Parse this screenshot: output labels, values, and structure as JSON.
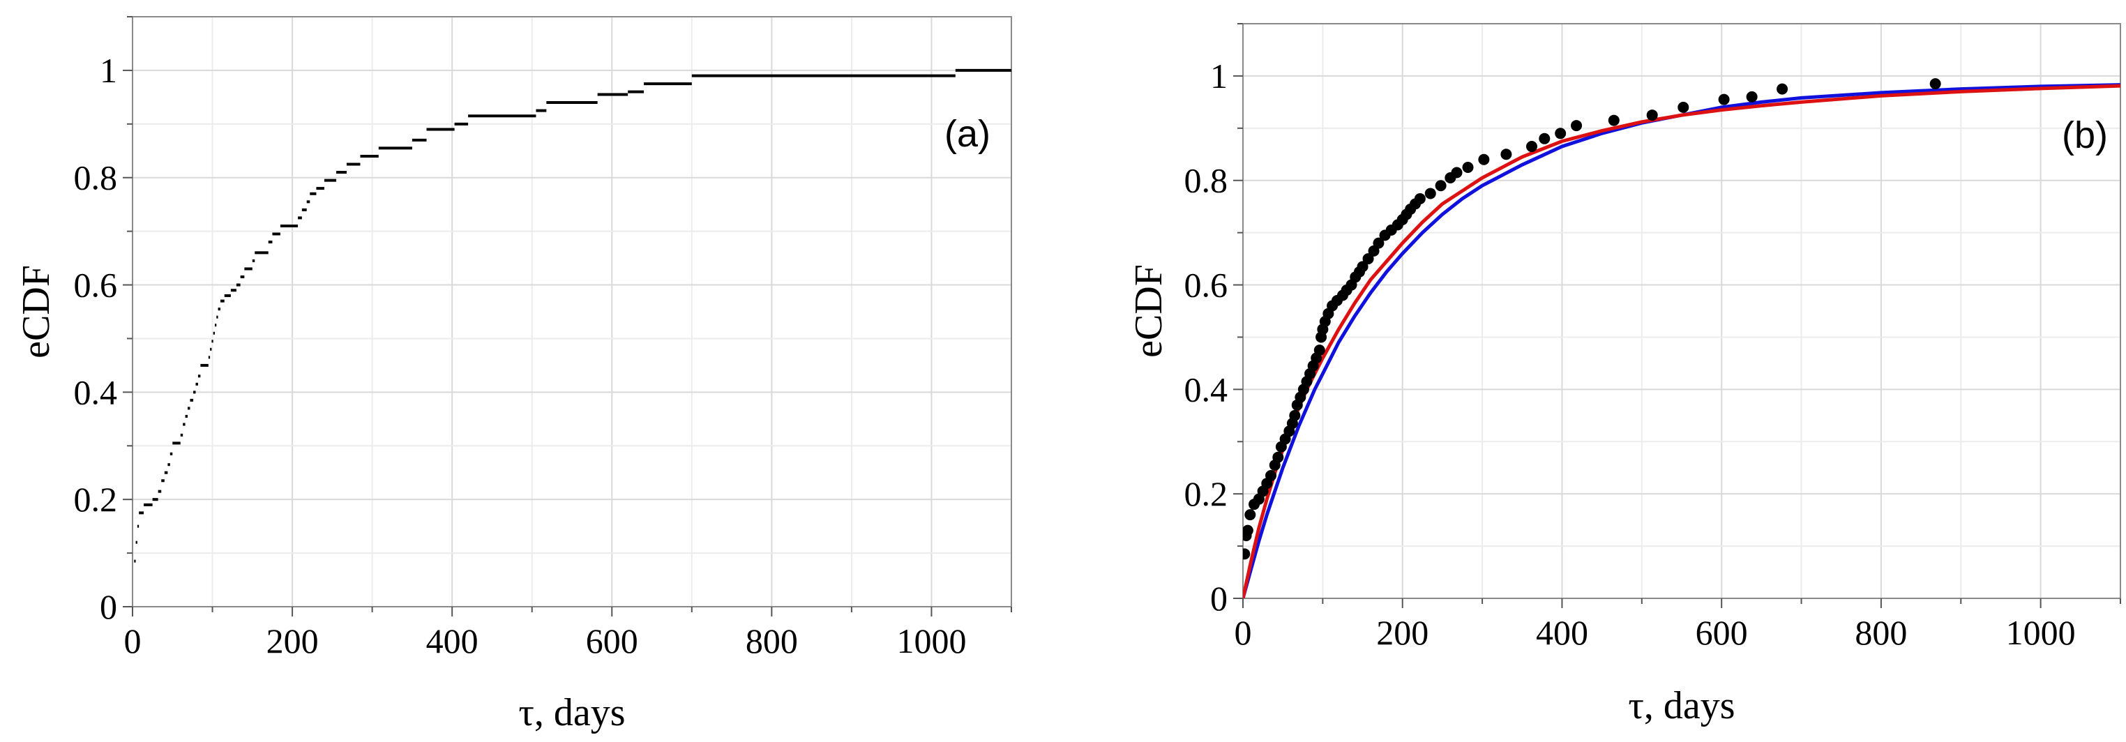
{
  "chart_data": [
    {
      "type": "step",
      "panel_label": "(a)",
      "xlabel": "τ, days",
      "ylabel": "eCDF",
      "xlim": [
        0,
        1100
      ],
      "ylim": [
        0,
        1.1
      ],
      "xticks": [
        0,
        200,
        400,
        600,
        800,
        1000
      ],
      "xtick_labels": [
        "0",
        "200",
        "400",
        "600",
        "800",
        "1000"
      ],
      "yticks": [
        0,
        0.2,
        0.4,
        0.6,
        0.8,
        1
      ],
      "ytick_labels": [
        "0",
        "0.2",
        "0.4",
        "0.6",
        "0.8",
        "1"
      ],
      "grid": true,
      "series": [
        {
          "color": "#000000",
          "steps": [
            [
              2,
              0.085
            ],
            [
              4,
              0.12
            ],
            [
              6,
              0.15
            ],
            [
              8,
              0.175
            ],
            [
              14,
              0.19
            ],
            [
              25,
              0.2
            ],
            [
              32,
              0.215
            ],
            [
              36,
              0.235
            ],
            [
              40,
              0.25
            ],
            [
              44,
              0.265
            ],
            [
              47,
              0.285
            ],
            [
              50,
              0.305
            ],
            [
              60,
              0.32
            ],
            [
              63,
              0.34
            ],
            [
              66,
              0.355
            ],
            [
              69,
              0.37
            ],
            [
              72,
              0.385
            ],
            [
              76,
              0.4
            ],
            [
              79,
              0.415
            ],
            [
              82,
              0.43
            ],
            [
              85,
              0.45
            ],
            [
              95,
              0.465
            ],
            [
              97,
              0.48
            ],
            [
              99,
              0.495
            ],
            [
              101,
              0.51
            ],
            [
              103,
              0.525
            ],
            [
              105,
              0.54
            ],
            [
              107,
              0.555
            ],
            [
              110,
              0.57
            ],
            [
              115,
              0.58
            ],
            [
              123,
              0.59
            ],
            [
              130,
              0.6
            ],
            [
              135,
              0.615
            ],
            [
              140,
              0.63
            ],
            [
              150,
              0.645
            ],
            [
              153,
              0.66
            ],
            [
              170,
              0.68
            ],
            [
              175,
              0.695
            ],
            [
              185,
              0.71
            ],
            [
              207,
              0.725
            ],
            [
              212,
              0.74
            ],
            [
              218,
              0.755
            ],
            [
              222,
              0.77
            ],
            [
              230,
              0.78
            ],
            [
              240,
              0.795
            ],
            [
              255,
              0.81
            ],
            [
              268,
              0.825
            ],
            [
              285,
              0.84
            ],
            [
              308,
              0.855
            ],
            [
              350,
              0.87
            ],
            [
              368,
              0.89
            ],
            [
              403,
              0.9
            ],
            [
              420,
              0.915
            ],
            [
              505,
              0.925
            ],
            [
              518,
              0.94
            ],
            [
              582,
              0.955
            ],
            [
              620,
              0.96
            ],
            [
              640,
              0.975
            ],
            [
              700,
              0.99
            ],
            [
              1030,
              1.0
            ],
            [
              1100,
              1.0
            ]
          ]
        }
      ]
    },
    {
      "type": "scatter+line",
      "panel_label": "(b)",
      "xlabel": "τ, days",
      "ylabel": "eCDF",
      "xlim": [
        0,
        1100
      ],
      "ylim": [
        0,
        1.1
      ],
      "xticks": [
        0,
        200,
        400,
        600,
        800,
        1000
      ],
      "xtick_labels": [
        "0",
        "200",
        "400",
        "600",
        "800",
        "1000"
      ],
      "yticks": [
        0,
        0.2,
        0.4,
        0.6,
        0.8,
        1
      ],
      "ytick_labels": [
        "0",
        "0.2",
        "0.4",
        "0.6",
        "0.8",
        "1"
      ],
      "grid": true,
      "points": {
        "color": "#000000",
        "x": [
          2,
          4,
          6,
          9,
          14,
          20,
          25,
          30,
          35,
          40,
          44,
          48,
          53,
          58,
          62,
          65,
          68,
          72,
          76,
          80,
          84,
          88,
          92,
          96,
          98,
          100,
          103,
          107,
          112,
          118,
          125,
          130,
          136,
          141,
          146,
          150,
          157,
          164,
          170,
          178,
          186,
          194,
          200,
          205,
          210,
          216,
          222,
          235,
          248,
          260,
          268,
          282,
          302,
          330,
          362,
          378,
          398,
          418,
          465,
          513,
          552,
          603,
          638,
          676,
          868
        ],
        "y": [
          0.085,
          0.12,
          0.13,
          0.16,
          0.18,
          0.19,
          0.205,
          0.22,
          0.235,
          0.255,
          0.27,
          0.29,
          0.305,
          0.32,
          0.335,
          0.35,
          0.37,
          0.385,
          0.4,
          0.415,
          0.43,
          0.445,
          0.46,
          0.475,
          0.5,
          0.515,
          0.53,
          0.545,
          0.56,
          0.57,
          0.58,
          0.59,
          0.6,
          0.615,
          0.625,
          0.635,
          0.65,
          0.665,
          0.68,
          0.695,
          0.705,
          0.715,
          0.725,
          0.735,
          0.745,
          0.755,
          0.765,
          0.775,
          0.79,
          0.805,
          0.815,
          0.825,
          0.84,
          0.85,
          0.865,
          0.88,
          0.89,
          0.905,
          0.915,
          0.925,
          0.94,
          0.955,
          0.96,
          0.975,
          0.985
        ]
      },
      "curves": [
        {
          "color": "#1111dd",
          "x": [
            0,
            10,
            20,
            30,
            40,
            50,
            60,
            70,
            80,
            90,
            100,
            120,
            140,
            160,
            180,
            200,
            225,
            250,
            275,
            300,
            350,
            400,
            450,
            500,
            550,
            600,
            650,
            700,
            800,
            900,
            1000,
            1100
          ],
          "y": [
            0,
            0.055,
            0.11,
            0.16,
            0.205,
            0.25,
            0.29,
            0.33,
            0.365,
            0.4,
            0.43,
            0.49,
            0.54,
            0.585,
            0.625,
            0.66,
            0.7,
            0.735,
            0.765,
            0.79,
            0.83,
            0.865,
            0.89,
            0.91,
            0.925,
            0.94,
            0.95,
            0.958,
            0.968,
            0.975,
            0.98,
            0.983
          ]
        },
        {
          "color": "#dd1111",
          "x": [
            0,
            10,
            20,
            30,
            40,
            50,
            60,
            70,
            80,
            90,
            100,
            120,
            140,
            160,
            180,
            200,
            225,
            250,
            275,
            300,
            350,
            400,
            450,
            500,
            550,
            600,
            650,
            700,
            800,
            900,
            1000,
            1100
          ],
          "y": [
            0,
            0.07,
            0.135,
            0.19,
            0.24,
            0.285,
            0.325,
            0.365,
            0.4,
            0.43,
            0.46,
            0.515,
            0.565,
            0.61,
            0.645,
            0.68,
            0.72,
            0.755,
            0.78,
            0.805,
            0.845,
            0.875,
            0.895,
            0.912,
            0.925,
            0.935,
            0.943,
            0.95,
            0.962,
            0.97,
            0.976,
            0.981
          ]
        }
      ]
    }
  ]
}
